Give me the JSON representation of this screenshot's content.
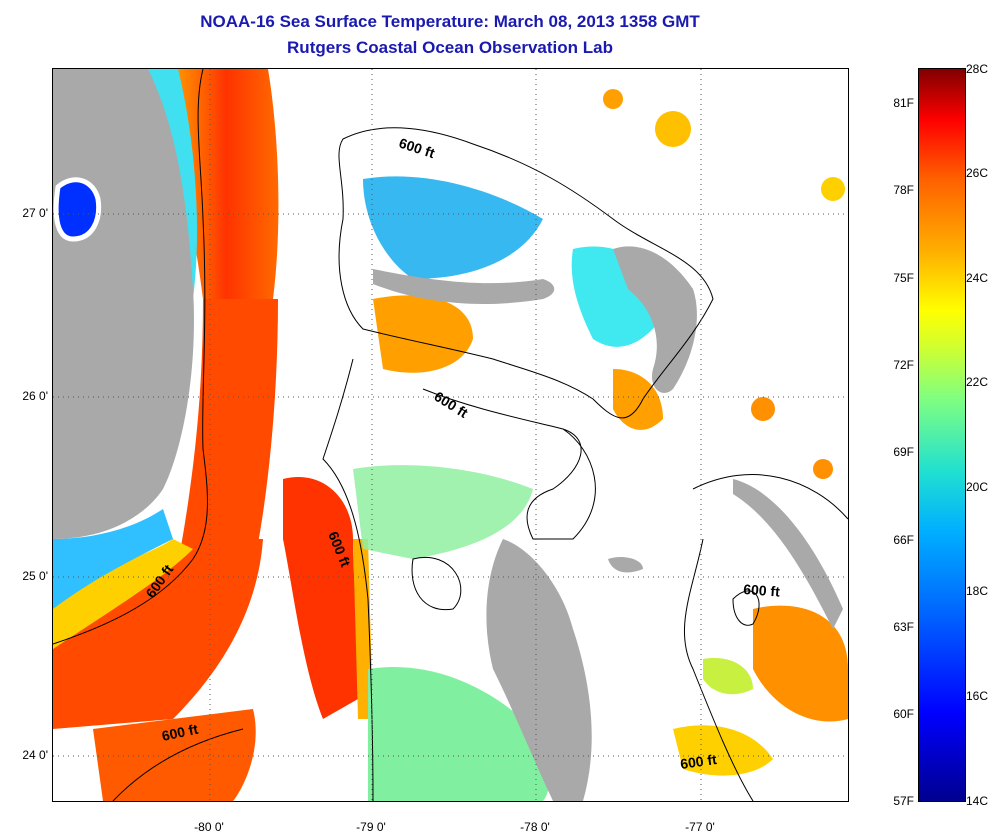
{
  "title": "NOAA-16 Sea Surface Temperature:  March 08, 2013 1358 GMT",
  "subtitle": "Rutgers Coastal Ocean Observation Lab",
  "lat_labels": [
    "27 0'",
    "26 0'",
    "25 0'",
    "24 0'"
  ],
  "lon_labels": [
    "-80 0'",
    "-79 0'",
    "-78 0'",
    "-77 0'"
  ],
  "isobath_label": "600 ft",
  "colorbar": {
    "fahrenheit": [
      "81F",
      "78F",
      "75F",
      "72F",
      "69F",
      "66F",
      "63F",
      "60F",
      "57F"
    ],
    "celsius": [
      "28C",
      "26C",
      "24C",
      "22C",
      "20C",
      "18C",
      "16C",
      "14C"
    ]
  },
  "colors": {
    "land": "#a9a9a9",
    "title": "#1a1ab0",
    "cloud": "#ffffff"
  }
}
